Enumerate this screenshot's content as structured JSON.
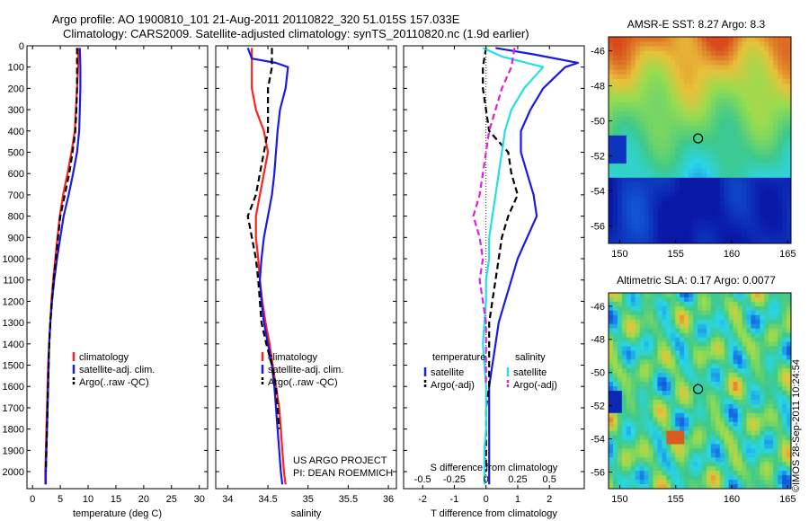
{
  "header": {
    "line1": "Argo profile: AO 1900810_101 21-Aug-2011 20110822_320 51.015S 157.033E",
    "line2": "Climatology: CARS2009. Satellite-adjusted climatology: synTS_20110820.nc (1.9d earlier)"
  },
  "side_text": "©IMOS 28-Sep-2011 10:24:54",
  "project_text": [
    "US ARGO PROJECT",
    "PI: DEAN ROEMMICH"
  ],
  "colors": {
    "climatology": "#ff2020",
    "satellite": "#1a1ae6",
    "argo": "#000000",
    "salinity_satellite": "#22e0e8",
    "argo_adj_salinity": "#e020e0",
    "map_hot": "#d84a1c",
    "map_warm": "#e8c23a",
    "map_mid": "#3ec98a",
    "map_cool": "#29d6e8",
    "map_cold": "#0a18a8"
  },
  "chart_data": [
    {
      "type": "line",
      "id": "temperature",
      "xlabel": "temperature (deg C)",
      "ylabel": "",
      "xlim": [
        -1,
        31.5
      ],
      "ylim": [
        2080,
        0
      ],
      "xticks": [
        0,
        5,
        10,
        15,
        20,
        25,
        30
      ],
      "yticks": [
        0,
        100,
        200,
        300,
        400,
        500,
        600,
        700,
        800,
        900,
        1000,
        1100,
        1200,
        1300,
        1400,
        1500,
        1600,
        1700,
        1800,
        1900,
        2000
      ],
      "legend": [
        "climatology",
        "satellite-adj. clim.",
        "Argo(..raw -QC)"
      ],
      "legend_position": "lower-center",
      "series": [
        {
          "name": "climatology",
          "role": "climatology",
          "style": "solid",
          "points": [
            [
              8.2,
              10
            ],
            [
              8.2,
              100
            ],
            [
              8.0,
              200
            ],
            [
              7.8,
              300
            ],
            [
              7.6,
              400
            ],
            [
              7.0,
              500
            ],
            [
              6.3,
              600
            ],
            [
              5.5,
              700
            ],
            [
              4.9,
              800
            ],
            [
              4.5,
              900
            ],
            [
              4.1,
              1000
            ],
            [
              3.7,
              1100
            ],
            [
              3.4,
              1200
            ],
            [
              3.2,
              1300
            ],
            [
              3.0,
              1400
            ],
            [
              2.8,
              1500
            ],
            [
              2.7,
              1600
            ],
            [
              2.6,
              1700
            ],
            [
              2.5,
              1800
            ],
            [
              2.4,
              1900
            ],
            [
              2.3,
              2000
            ],
            [
              2.3,
              2060
            ]
          ]
        },
        {
          "name": "satellite-adj. clim.",
          "role": "satellite",
          "style": "solid",
          "points": [
            [
              8.5,
              10
            ],
            [
              8.6,
              100
            ],
            [
              8.6,
              200
            ],
            [
              8.5,
              300
            ],
            [
              8.4,
              400
            ],
            [
              8.0,
              500
            ],
            [
              7.3,
              600
            ],
            [
              6.5,
              700
            ],
            [
              5.6,
              800
            ],
            [
              5.0,
              900
            ],
            [
              4.4,
              1000
            ],
            [
              3.9,
              1100
            ],
            [
              3.5,
              1200
            ],
            [
              3.2,
              1300
            ],
            [
              3.0,
              1400
            ],
            [
              2.9,
              1500
            ],
            [
              2.8,
              1600
            ],
            [
              2.7,
              1700
            ],
            [
              2.6,
              1800
            ],
            [
              2.5,
              1900
            ],
            [
              2.4,
              2000
            ],
            [
              2.4,
              2060
            ]
          ]
        },
        {
          "name": "Argo(..raw -QC)",
          "role": "argo",
          "style": "dashed",
          "points": [
            [
              8.0,
              10
            ],
            [
              8.0,
              100
            ],
            [
              8.0,
              200
            ],
            [
              7.9,
              300
            ],
            [
              7.7,
              400
            ],
            [
              7.2,
              500
            ],
            [
              6.6,
              600
            ],
            [
              5.8,
              700
            ],
            [
              5.0,
              800
            ],
            [
              4.6,
              900
            ],
            [
              4.2,
              1000
            ],
            [
              3.8,
              1100
            ],
            [
              3.5,
              1200
            ],
            [
              3.2,
              1300
            ],
            [
              3.0,
              1400
            ],
            [
              2.9,
              1500
            ],
            [
              2.8,
              1600
            ],
            [
              2.7,
              1700
            ],
            [
              2.6,
              1800
            ],
            [
              2.5,
              1900
            ],
            [
              2.4,
              2000
            ]
          ]
        }
      ]
    },
    {
      "type": "line",
      "id": "salinity",
      "xlabel": "salinity",
      "ylabel": "",
      "xlim": [
        33.85,
        36.1
      ],
      "ylim": [
        2080,
        0
      ],
      "xticks": [
        34,
        34.5,
        35,
        35.5,
        36
      ],
      "legend": [
        "climatology",
        "satellite-adj. clim.",
        "Argo(..raw -QC)"
      ],
      "legend_position": "lower-center",
      "series": [
        {
          "name": "climatology",
          "role": "climatology",
          "style": "solid",
          "points": [
            [
              34.3,
              10
            ],
            [
              34.3,
              100
            ],
            [
              34.3,
              200
            ],
            [
              34.35,
              300
            ],
            [
              34.45,
              400
            ],
            [
              34.5,
              500
            ],
            [
              34.45,
              600
            ],
            [
              34.4,
              700
            ],
            [
              34.35,
              800
            ],
            [
              34.35,
              900
            ],
            [
              34.38,
              1000
            ],
            [
              34.4,
              1100
            ],
            [
              34.43,
              1200
            ],
            [
              34.47,
              1300
            ],
            [
              34.52,
              1400
            ],
            [
              34.56,
              1500
            ],
            [
              34.6,
              1600
            ],
            [
              34.64,
              1700
            ],
            [
              34.66,
              1800
            ],
            [
              34.68,
              1900
            ],
            [
              34.7,
              2000
            ],
            [
              34.72,
              2060
            ]
          ]
        },
        {
          "name": "satellite-adj. clim.",
          "role": "satellite",
          "style": "solid",
          "points": [
            [
              34.25,
              10
            ],
            [
              34.3,
              60
            ],
            [
              34.6,
              80
            ],
            [
              34.75,
              100
            ],
            [
              34.72,
              200
            ],
            [
              34.65,
              300
            ],
            [
              34.62,
              400
            ],
            [
              34.6,
              500
            ],
            [
              34.58,
              600
            ],
            [
              34.55,
              700
            ],
            [
              34.5,
              800
            ],
            [
              34.45,
              900
            ],
            [
              34.42,
              1000
            ],
            [
              34.4,
              1100
            ],
            [
              34.42,
              1200
            ],
            [
              34.45,
              1300
            ],
            [
              34.5,
              1400
            ],
            [
              34.55,
              1500
            ],
            [
              34.58,
              1600
            ],
            [
              34.6,
              1700
            ],
            [
              34.62,
              1800
            ],
            [
              34.64,
              1900
            ],
            [
              34.66,
              2000
            ],
            [
              34.68,
              2060
            ]
          ]
        },
        {
          "name": "Argo(..raw -QC)",
          "role": "argo",
          "style": "dashed",
          "points": [
            [
              34.55,
              10
            ],
            [
              34.55,
              100
            ],
            [
              34.5,
              200
            ],
            [
              34.5,
              300
            ],
            [
              34.5,
              400
            ],
            [
              34.45,
              500
            ],
            [
              34.4,
              600
            ],
            [
              34.35,
              700
            ],
            [
              34.25,
              800
            ],
            [
              34.3,
              900
            ],
            [
              34.35,
              1000
            ],
            [
              34.38,
              1100
            ],
            [
              34.4,
              1200
            ],
            [
              34.42,
              1300
            ],
            [
              34.48,
              1400
            ],
            [
              34.55,
              1500
            ],
            [
              34.6,
              1600
            ],
            [
              34.62,
              1700
            ],
            [
              34.64,
              1800
            ]
          ]
        }
      ]
    },
    {
      "type": "line",
      "id": "difference",
      "xlabel": "T difference from climatology",
      "xlabel_top": "S difference from climatology",
      "ylabel": "",
      "xlim": [
        -2.6,
        3.1
      ],
      "ylim": [
        2080,
        0
      ],
      "xticks": [
        -2,
        -1,
        0,
        1,
        2
      ],
      "xticklabels_s": [
        "-0.5",
        "-0.25",
        "0",
        "0.25",
        "0.5"
      ],
      "legend_groups": [
        {
          "title": "temperature",
          "items": [
            "satellite",
            "Argo(-adj)"
          ]
        },
        {
          "title": "salinity",
          "items": [
            "satellite",
            "Argo(-adj)"
          ]
        }
      ],
      "legend_position": "lower-center",
      "series": [
        {
          "name": "temperature satellite",
          "role": "satellite",
          "style": "solid",
          "points": [
            [
              0.3,
              10
            ],
            [
              1.5,
              40
            ],
            [
              2.9,
              80
            ],
            [
              2.5,
              100
            ],
            [
              1.8,
              200
            ],
            [
              1.4,
              300
            ],
            [
              1.1,
              400
            ],
            [
              1.1,
              500
            ],
            [
              1.3,
              600
            ],
            [
              1.5,
              700
            ],
            [
              1.6,
              800
            ],
            [
              1.3,
              900
            ],
            [
              1.0,
              1000
            ],
            [
              0.8,
              1100
            ],
            [
              0.6,
              1200
            ],
            [
              0.4,
              1300
            ],
            [
              0.3,
              1400
            ],
            [
              0.2,
              1500
            ],
            [
              0.1,
              1600
            ],
            [
              0.1,
              1700
            ],
            [
              0.1,
              1800
            ],
            [
              0.1,
              1900
            ],
            [
              0.1,
              2000
            ],
            [
              0.1,
              2060
            ]
          ]
        },
        {
          "name": "temperature Argo(-adj)",
          "role": "argo",
          "style": "dashed",
          "points": [
            [
              0,
              10
            ],
            [
              -0.1,
              100
            ],
            [
              -0.1,
              200
            ],
            [
              0,
              300
            ],
            [
              0.1,
              400
            ],
            [
              0.7,
              500
            ],
            [
              0.8,
              600
            ],
            [
              1.0,
              700
            ],
            [
              0.7,
              800
            ],
            [
              0.5,
              900
            ],
            [
              0.4,
              1000
            ],
            [
              0.3,
              1100
            ],
            [
              0.2,
              1200
            ],
            [
              0.1,
              1300
            ],
            [
              0.1,
              1400
            ],
            [
              0.1,
              1500
            ],
            [
              0.1,
              1600
            ],
            [
              0,
              1700
            ],
            [
              0,
              1800
            ],
            [
              0,
              1900
            ],
            [
              0,
              2000
            ]
          ]
        },
        {
          "name": "salinity satellite",
          "role": "salinity_satellite",
          "style": "solid",
          "points": [
            [
              -0.1,
              10
            ],
            [
              0.5,
              50
            ],
            [
              1.8,
              100
            ],
            [
              1.2,
              200
            ],
            [
              0.8,
              300
            ],
            [
              0.6,
              400
            ],
            [
              0.5,
              500
            ],
            [
              0.4,
              600
            ],
            [
              0.3,
              700
            ],
            [
              0.2,
              800
            ],
            [
              0.1,
              900
            ],
            [
              0.1,
              1000
            ],
            [
              0,
              1100
            ],
            [
              0,
              1200
            ],
            [
              -0.05,
              1300
            ],
            [
              -0.1,
              1400
            ],
            [
              -0.05,
              1500
            ],
            [
              0,
              1600
            ],
            [
              0,
              1700
            ],
            [
              0,
              1800
            ],
            [
              -0.05,
              1900
            ],
            [
              -0.05,
              2000
            ],
            [
              -0.05,
              2060
            ]
          ]
        },
        {
          "name": "salinity Argo(-adj)",
          "role": "argo_adj_salinity",
          "style": "dashed",
          "points": [
            [
              0.9,
              10
            ],
            [
              0.8,
              100
            ],
            [
              0.5,
              200
            ],
            [
              0.3,
              300
            ],
            [
              0.1,
              400
            ],
            [
              0,
              500
            ],
            [
              -0.1,
              600
            ],
            [
              -0.2,
              700
            ],
            [
              -0.4,
              800
            ],
            [
              -0.2,
              900
            ],
            [
              -0.1,
              1000
            ],
            [
              -0.2,
              1100
            ],
            [
              -0.1,
              1200
            ],
            [
              0,
              1300
            ],
            [
              0,
              1400
            ],
            [
              0,
              1500
            ],
            [
              0,
              1600
            ]
          ]
        }
      ]
    },
    {
      "type": "heatmap",
      "id": "sst",
      "title": "AMSR-E SST: 8.27 Argo: 8.3",
      "xlim": [
        149,
        165.3
      ],
      "ylim": [
        -57,
        -45.2
      ],
      "xticks": [
        150,
        155,
        160,
        165
      ],
      "yticks": [
        -46,
        -48,
        -50,
        -52,
        -54,
        -56
      ],
      "marker": {
        "lon": 157.0,
        "lat": -51.0
      }
    },
    {
      "type": "heatmap",
      "id": "sla",
      "title": "Altimetric SLA: 0.17 Argo: 0.0077",
      "xlim": [
        149,
        165.3
      ],
      "ylim": [
        -57,
        -45.2
      ],
      "xticks": [
        150,
        155,
        160,
        165
      ],
      "yticks": [
        -46,
        -48,
        -50,
        -52,
        -54,
        -56
      ],
      "marker": {
        "lon": 157.0,
        "lat": -51.0
      }
    }
  ]
}
